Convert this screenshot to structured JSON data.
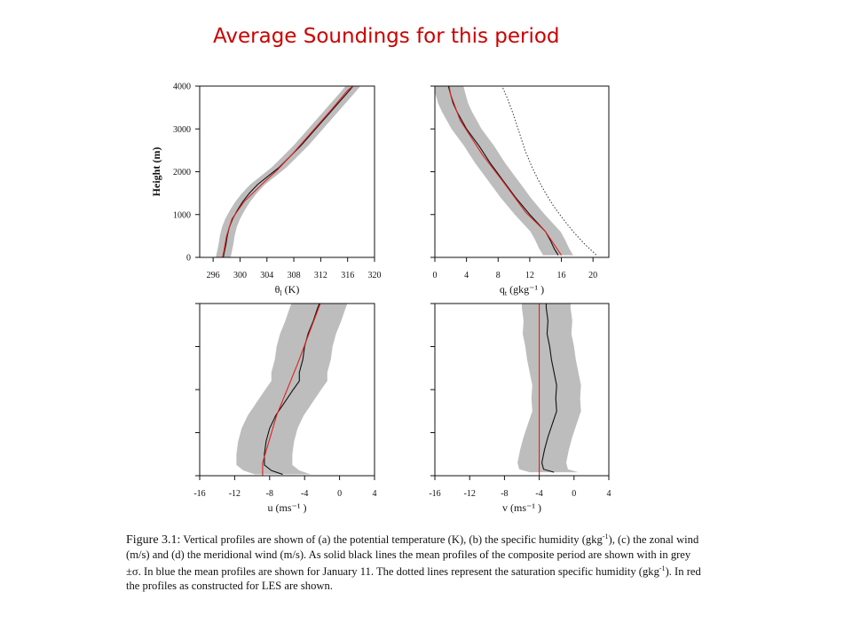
{
  "slide": {
    "title": "Average Soundings for this period"
  },
  "caption": {
    "parts": [
      {
        "t": "b",
        "v": "Figure 3.1:"
      },
      {
        "t": "n",
        "v": " Vertical profiles are shown of (a) the potential temperature (K), (b) the specific humidity (gkg"
      },
      {
        "t": "s",
        "v": "-1"
      },
      {
        "t": "n",
        "v": "), (c) the zonal wind (m/s) and (d) the meridional wind (m/s). As solid black lines the mean profiles of the composite period are shown with in grey ±σ. In blue the mean profiles are shown for January 11. The dotted lines represent the saturation specific humidity (gkg"
      },
      {
        "t": "s",
        "v": "-1"
      },
      {
        "t": "n",
        "v": "). In red the profiles as constructed for LES are shown."
      }
    ]
  },
  "chart_data": [
    {
      "id": "a",
      "type": "line",
      "ylabel": "Height (m)",
      "xlabel": {
        "main": "θ",
        "sub": "l",
        "unit": " (K)"
      },
      "xlim": [
        294,
        320
      ],
      "ylim": [
        0,
        4000
      ],
      "xticks": [
        296,
        300,
        304,
        308,
        312,
        316,
        320
      ],
      "yticks": [
        0,
        1000,
        2000,
        3000,
        4000
      ],
      "show_ytick_labels": true,
      "colors": {
        "mean": "#111111",
        "les": "#e02020",
        "band": "#bdbdbd",
        "dotted": "#333333"
      },
      "mean": [
        [
          297.5,
          0
        ],
        [
          297.7,
          150
        ],
        [
          297.9,
          300
        ],
        [
          298.1,
          500
        ],
        [
          298.4,
          700
        ],
        [
          298.9,
          900
        ],
        [
          299.6,
          1100
        ],
        [
          300.4,
          1300
        ],
        [
          301.4,
          1500
        ],
        [
          302.6,
          1700
        ],
        [
          304.2,
          1900
        ],
        [
          305.8,
          2100
        ],
        [
          307.4,
          2350
        ],
        [
          309.0,
          2600
        ],
        [
          310.4,
          2850
        ],
        [
          311.8,
          3100
        ],
        [
          313.2,
          3350
        ],
        [
          314.6,
          3600
        ],
        [
          316.0,
          3850
        ],
        [
          316.8,
          4000
        ]
      ],
      "band_width": 1.1,
      "les": [
        [
          297.4,
          0
        ],
        [
          297.6,
          150
        ],
        [
          298.0,
          500
        ],
        [
          298.8,
          900
        ],
        [
          300.6,
          1300
        ],
        [
          303.2,
          1700
        ],
        [
          305.6,
          2050
        ],
        [
          308.0,
          2450
        ],
        [
          310.8,
          2950
        ],
        [
          313.6,
          3450
        ],
        [
          316.0,
          3900
        ],
        [
          316.8,
          4000
        ]
      ],
      "dotted": []
    },
    {
      "id": "b",
      "type": "line",
      "ylabel": "",
      "xlabel": {
        "main": "q",
        "sub": "t",
        "unit": " (gkg⁻¹ )"
      },
      "xlim": [
        0,
        22
      ],
      "ylim": [
        0,
        4000
      ],
      "xticks": [
        0,
        4,
        8,
        12,
        16,
        20
      ],
      "yticks": [
        0,
        1000,
        2000,
        3000,
        4000
      ],
      "show_ytick_labels": false,
      "colors": {
        "mean": "#111111",
        "les": "#e02020",
        "band": "#bdbdbd",
        "dotted": "#333333"
      },
      "mean": [
        [
          15.6,
          50
        ],
        [
          15.1,
          200
        ],
        [
          14.6,
          400
        ],
        [
          14.0,
          600
        ],
        [
          13.0,
          800
        ],
        [
          12.0,
          1000
        ],
        [
          11.1,
          1200
        ],
        [
          10.2,
          1400
        ],
        [
          9.4,
          1600
        ],
        [
          8.6,
          1800
        ],
        [
          7.8,
          2000
        ],
        [
          7.0,
          2200
        ],
        [
          6.3,
          2400
        ],
        [
          5.6,
          2600
        ],
        [
          4.8,
          2800
        ],
        [
          4.0,
          3000
        ],
        [
          3.4,
          3200
        ],
        [
          2.8,
          3400
        ],
        [
          2.3,
          3600
        ],
        [
          2.0,
          3800
        ],
        [
          1.7,
          4000
        ]
      ],
      "band_width": 1.9,
      "les": [
        [
          16.0,
          50
        ],
        [
          14.0,
          600
        ],
        [
          11.5,
          1050
        ],
        [
          8.5,
          1800
        ],
        [
          6.0,
          2400
        ],
        [
          3.2,
          3200
        ],
        [
          2.0,
          3800
        ],
        [
          1.8,
          4000
        ]
      ],
      "dotted": [
        [
          20.4,
          60
        ],
        [
          19.0,
          300
        ],
        [
          17.5,
          600
        ],
        [
          16.2,
          900
        ],
        [
          15.0,
          1200
        ],
        [
          14.0,
          1500
        ],
        [
          13.1,
          1800
        ],
        [
          12.3,
          2100
        ],
        [
          11.4,
          2500
        ],
        [
          10.7,
          2900
        ],
        [
          10.0,
          3300
        ],
        [
          9.2,
          3700
        ],
        [
          8.5,
          4000
        ]
      ]
    },
    {
      "id": "c",
      "type": "line",
      "ylabel": "",
      "xlabel": {
        "main": "u",
        "sub": "",
        "unit": " (ms⁻¹ )"
      },
      "xlim": [
        -16,
        4
      ],
      "ylim": [
        0,
        4000
      ],
      "xticks": [
        -16,
        -12,
        -8,
        -4,
        0,
        4
      ],
      "yticks": [
        0,
        1000,
        2000,
        3000,
        4000
      ],
      "show_ytick_labels": false,
      "colors": {
        "mean": "#111111",
        "les": "#e02020",
        "band": "#bdbdbd",
        "dotted": "#333333"
      },
      "mean": [
        [
          -6.5,
          30
        ],
        [
          -7.8,
          120
        ],
        [
          -8.6,
          250
        ],
        [
          -8.6,
          500
        ],
        [
          -8.4,
          800
        ],
        [
          -8.0,
          1100
        ],
        [
          -7.3,
          1400
        ],
        [
          -6.3,
          1700
        ],
        [
          -5.3,
          2000
        ],
        [
          -4.6,
          2200
        ],
        [
          -4.6,
          2400
        ],
        [
          -4.2,
          2700
        ],
        [
          -4.0,
          3000
        ],
        [
          -3.6,
          3300
        ],
        [
          -3.0,
          3600
        ],
        [
          -2.5,
          3900
        ],
        [
          -2.3,
          4000
        ]
      ],
      "band_width": 3.2,
      "les": [
        [
          -8.8,
          0
        ],
        [
          -8.8,
          300
        ],
        [
          -7.2,
          1400
        ],
        [
          -4.8,
          2600
        ],
        [
          -2.2,
          4000
        ]
      ],
      "dotted": []
    },
    {
      "id": "d",
      "type": "line",
      "ylabel": "",
      "xlabel": {
        "main": "v",
        "sub": "",
        "unit": " (ms⁻¹ )"
      },
      "xlim": [
        -16,
        4
      ],
      "ylim": [
        0,
        4000
      ],
      "xticks": [
        -16,
        -12,
        -8,
        -4,
        0,
        4
      ],
      "yticks": [
        0,
        1000,
        2000,
        3000,
        4000
      ],
      "show_ytick_labels": false,
      "colors": {
        "mean": "#111111",
        "les": "#e02020",
        "band": "#bdbdbd",
        "dotted": "#333333"
      },
      "mean": [
        [
          -2.3,
          80
        ],
        [
          -3.5,
          150
        ],
        [
          -3.7,
          300
        ],
        [
          -3.4,
          600
        ],
        [
          -3.0,
          900
        ],
        [
          -2.5,
          1200
        ],
        [
          -2.0,
          1500
        ],
        [
          -2.1,
          1800
        ],
        [
          -2.0,
          2100
        ],
        [
          -2.3,
          2400
        ],
        [
          -2.6,
          2700
        ],
        [
          -2.8,
          3000
        ],
        [
          -3.1,
          3300
        ],
        [
          -3.0,
          3600
        ],
        [
          -3.2,
          3900
        ],
        [
          -3.2,
          4000
        ]
      ],
      "band_width": 2.8,
      "les": [
        [
          -4.0,
          0
        ],
        [
          -4.0,
          4000
        ]
      ],
      "dotted": []
    }
  ]
}
